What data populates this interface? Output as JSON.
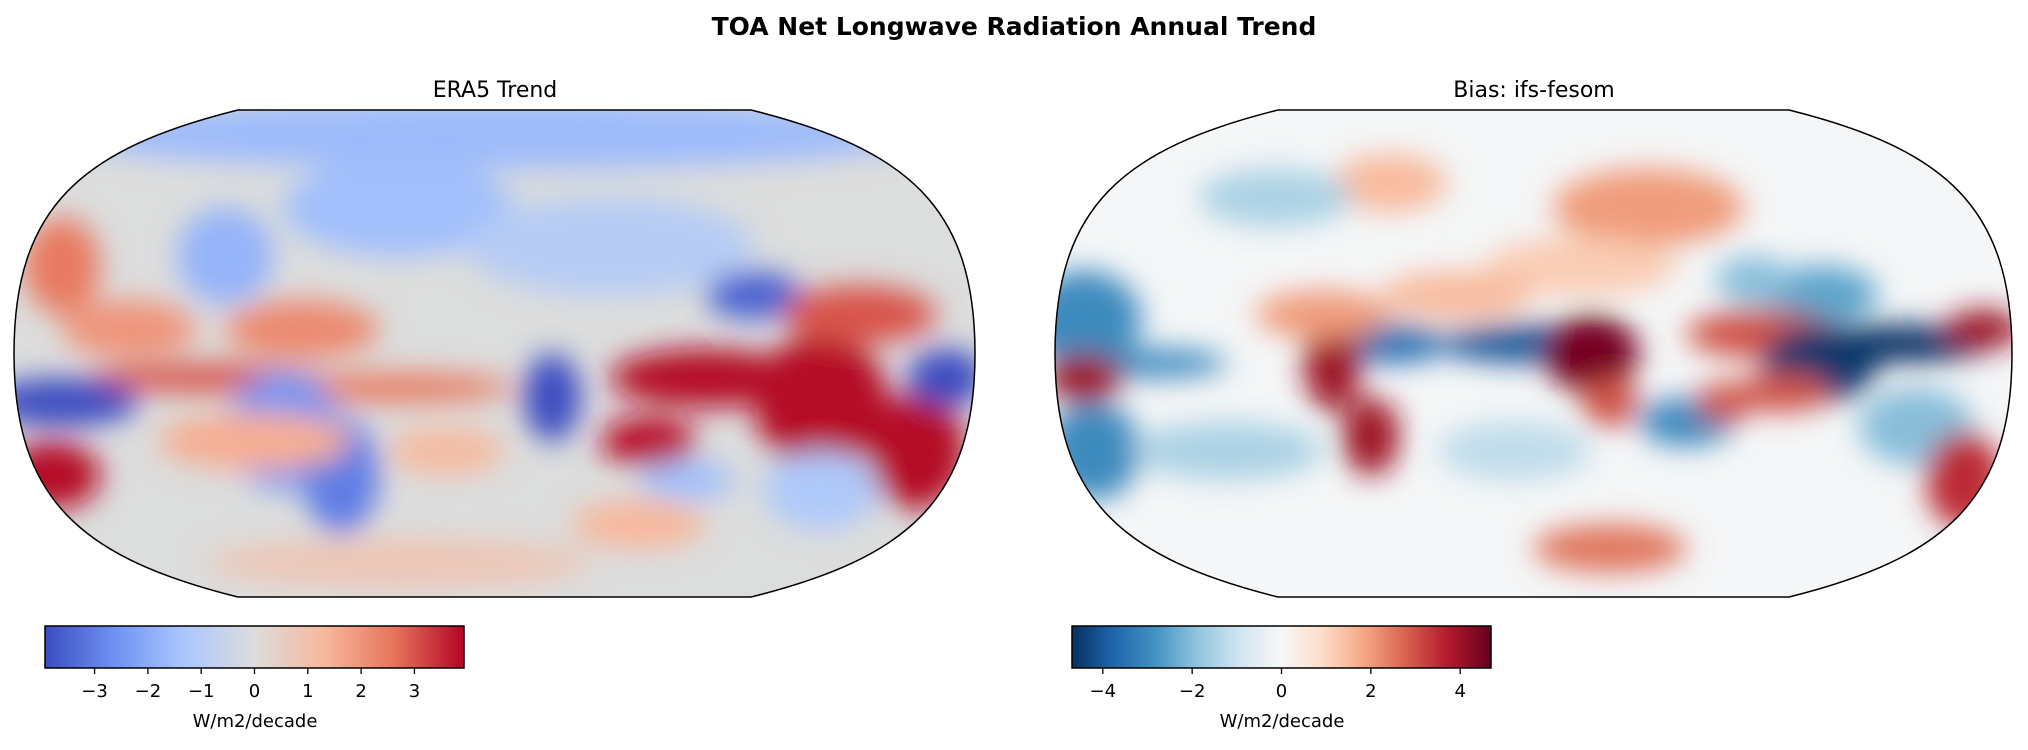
{
  "chart_data": {
    "title": "TOA Net Longwave Radiation Annual Trend",
    "panels": [
      {
        "type": "heatmap",
        "subtitle": "ERA5 Trend",
        "projection": "robinson",
        "colormap": "coolwarm",
        "colorbar": {
          "label": "W/m2/decade",
          "range": [
            -3.93,
            3.93
          ],
          "ticks": [
            -3,
            -2,
            -1,
            0,
            1,
            2,
            3
          ],
          "tick_labels": [
            "−3",
            "−2",
            "−1",
            "0",
            "1",
            "2",
            "3"
          ],
          "colors": [
            "#3b4cc0",
            "#6f92f3",
            "#aac7fd",
            "#dddcdc",
            "#f7b89c",
            "#e7745b",
            "#b40426"
          ]
        }
      },
      {
        "type": "heatmap",
        "subtitle": "Bias: ifs-fesom",
        "projection": "robinson",
        "colormap": "RdBu_r",
        "colorbar": {
          "label": "W/m2/decade",
          "range": [
            -4.69,
            4.69
          ],
          "ticks": [
            -4,
            -2,
            0,
            2,
            4
          ],
          "tick_labels": [
            "−4",
            "−2",
            "0",
            "2",
            "4"
          ],
          "colors": [
            "#053061",
            "#2166ac",
            "#4393c3",
            "#92c5de",
            "#d1e5f0",
            "#f7f7f7",
            "#fddbc7",
            "#f4a582",
            "#d6604d",
            "#b2182b",
            "#67001f"
          ]
        }
      }
    ]
  }
}
